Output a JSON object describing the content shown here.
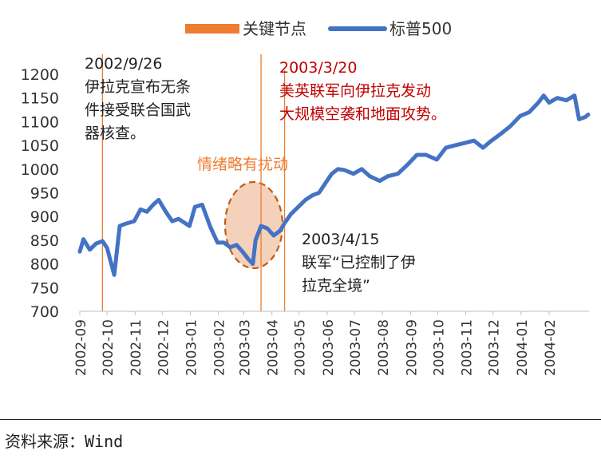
{
  "chart_data": {
    "type": "line",
    "legend": [
      {
        "name": "关键节点",
        "color": "#ED7D31",
        "kind": "bar"
      },
      {
        "name": "标普500",
        "color": "#4472C4",
        "kind": "line"
      }
    ],
    "legend_position": "top",
    "y_ticks": [
      700,
      750,
      800,
      850,
      900,
      950,
      1000,
      1050,
      1100,
      1150,
      1200
    ],
    "ylim": [
      700,
      1200
    ],
    "x_ticks": [
      "2002-09",
      "2002-10",
      "2002-11",
      "2002-12",
      "2003-01",
      "2003-02",
      "2003-03",
      "2003-04",
      "2003-05",
      "2003-06",
      "2003-07",
      "2003-08",
      "2003-09",
      "2003-10",
      "2003-11",
      "2003-12",
      "2004-01",
      "2004-02"
    ],
    "series": [
      {
        "name": "标普500",
        "color": "#4472C4",
        "x": [
          "2002-09-01",
          "2002-09-05",
          "2002-09-12",
          "2002-09-19",
          "2002-09-26",
          "2002-10-01",
          "2002-10-09",
          "2002-10-15",
          "2002-10-22",
          "2002-10-31",
          "2002-11-07",
          "2002-11-14",
          "2002-11-21",
          "2002-11-27",
          "2002-12-05",
          "2002-12-12",
          "2002-12-19",
          "2002-12-31",
          "2003-01-06",
          "2003-01-14",
          "2003-01-23",
          "2003-01-31",
          "2003-02-07",
          "2003-02-14",
          "2003-02-21",
          "2003-02-28",
          "2003-03-06",
          "2003-03-11",
          "2003-03-14",
          "2003-03-20",
          "2003-03-27",
          "2003-04-03",
          "2003-04-10",
          "2003-04-15",
          "2003-04-22",
          "2003-04-30",
          "2003-05-08",
          "2003-05-16",
          "2003-05-23",
          "2003-05-30",
          "2003-06-06",
          "2003-06-13",
          "2003-06-20",
          "2003-06-30",
          "2003-07-09",
          "2003-07-18",
          "2003-07-29",
          "2003-08-07",
          "2003-08-18",
          "2003-08-29",
          "2003-09-08",
          "2003-09-18",
          "2003-09-30",
          "2003-10-10",
          "2003-10-20",
          "2003-10-31",
          "2003-11-10",
          "2003-11-20",
          "2003-11-28",
          "2003-12-10",
          "2003-12-20",
          "2003-12-31",
          "2004-01-10",
          "2004-01-20",
          "2004-01-26",
          "2004-02-01",
          "2004-02-10",
          "2004-02-20",
          "2004-02-29",
          "2004-03-05",
          "2004-03-12",
          "2004-03-15"
        ],
        "values": [
          826,
          852,
          830,
          843,
          848,
          834,
          777,
          880,
          885,
          890,
          915,
          910,
          925,
          935,
          910,
          890,
          895,
          880,
          920,
          925,
          878,
          845,
          845,
          835,
          840,
          825,
          810,
          800,
          850,
          880,
          875,
          860,
          870,
          886,
          905,
          920,
          935,
          945,
          950,
          970,
          990,
          1000,
          998,
          990,
          1000,
          985,
          975,
          985,
          990,
          1010,
          1030,
          1030,
          1020,
          1045,
          1050,
          1055,
          1060,
          1045,
          1058,
          1075,
          1090,
          1112,
          1120,
          1140,
          1155,
          1140,
          1150,
          1145,
          1155,
          1105,
          1110,
          1115
        ]
      }
    ],
    "key_dates": [
      "2002-09-26",
      "2003-03-20"
    ],
    "annotations": [
      {
        "id": "ann1",
        "lines": [
          "2002/9/26",
          "伊拉克宣布无条",
          "件接受联合国武",
          "器核查。"
        ],
        "color": "#222222"
      },
      {
        "id": "ann2",
        "lines": [
          "2003/3/20",
          "美英联军向伊拉克发动",
          "大规模空袭和地面攻势。"
        ],
        "color": "#C00000"
      },
      {
        "id": "ann3",
        "lines": [
          "情绪略有扰动"
        ],
        "color": "#ED7D31"
      },
      {
        "id": "ann4",
        "lines": [
          "2003/4/15",
          "联军“已控制了伊",
          "拉克全境”"
        ],
        "color": "#222222"
      }
    ]
  },
  "source": "资料来源：Wind"
}
